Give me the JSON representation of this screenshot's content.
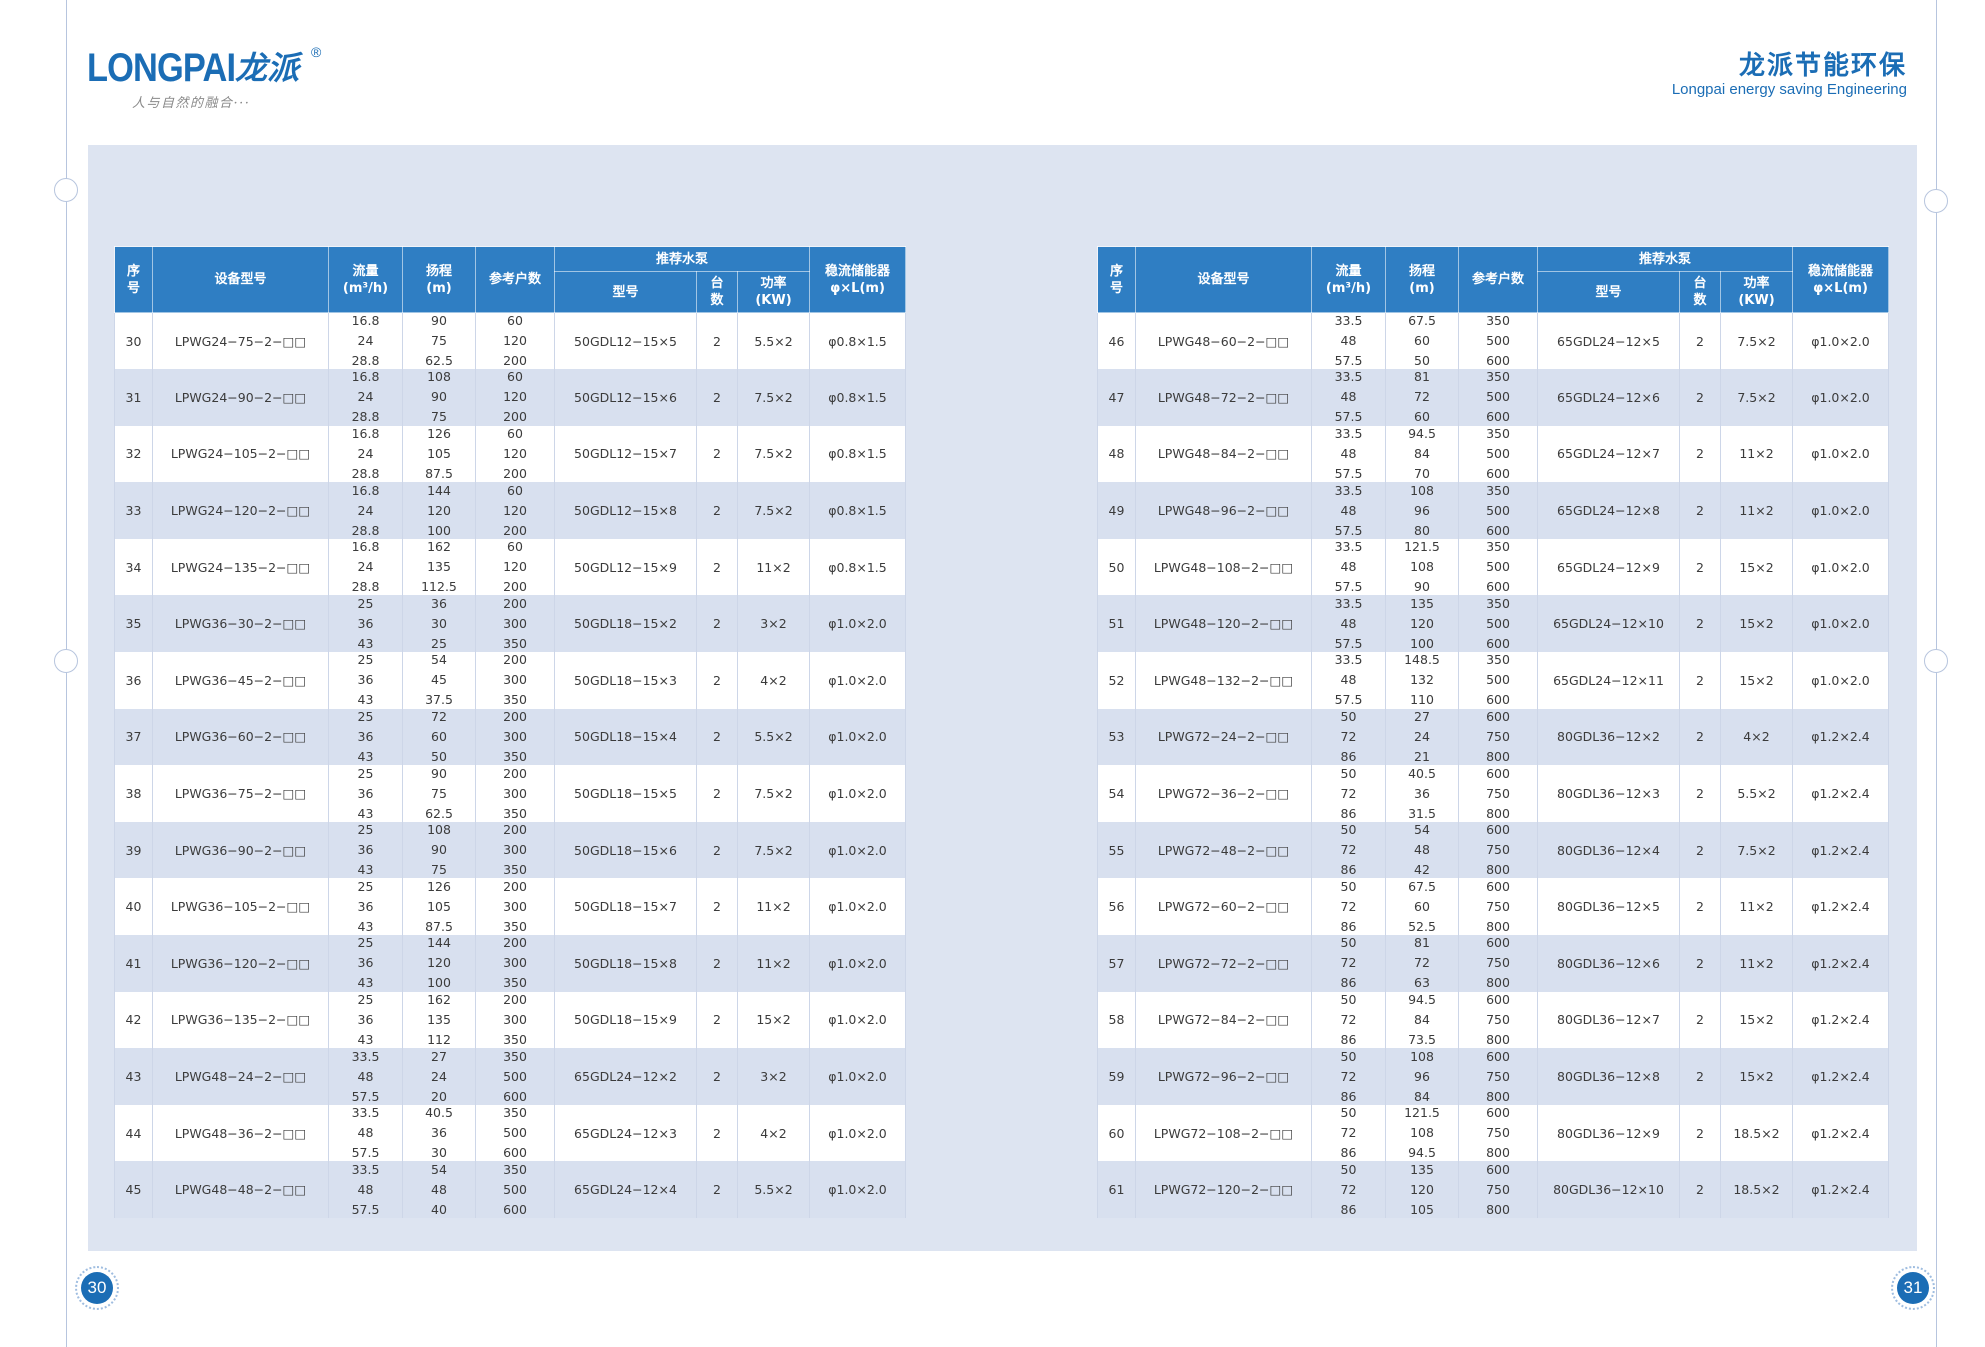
{
  "colors": {
    "brand_blue": "#1b6db5",
    "header_blue": "#2f7ec3",
    "panel": "#dde4f1",
    "stripe": "#d8e0ef"
  },
  "brand": {
    "logo_text": "LONGPAI",
    "logo_cn": "龙派",
    "registered_mark": "®",
    "tagline": "人与自然的融合···",
    "company_cn": "龙派节能环保",
    "company_en": "Longpai energy saving Engineering"
  },
  "header": {
    "index": [
      "序",
      "号"
    ],
    "model": "设备型号",
    "flow": [
      "流量",
      "(m³/h)"
    ],
    "head": [
      "扬程",
      "(m)"
    ],
    "households": "参考户数",
    "pump_group": "推荐水泵",
    "pump_model": "型号",
    "pump_count": [
      "台",
      "数"
    ],
    "power": [
      "功率",
      "(KW)"
    ],
    "tank": [
      "稳流储能器",
      "φ×L(m)"
    ]
  },
  "tables": [
    {
      "rows": [
        {
          "no": "30",
          "model": "LPWG24−75−2−□□",
          "flow": [
            "16.8",
            "24",
            "28.8"
          ],
          "head": [
            "90",
            "75",
            "62.5"
          ],
          "households": [
            "60",
            "120",
            "200"
          ],
          "pump_model": "50GDL12−15×5",
          "pump_count": "2",
          "power": "5.5×2",
          "tank": "φ0.8×1.5"
        },
        {
          "no": "31",
          "model": "LPWG24−90−2−□□",
          "flow": [
            "16.8",
            "24",
            "28.8"
          ],
          "head": [
            "108",
            "90",
            "75"
          ],
          "households": [
            "60",
            "120",
            "200"
          ],
          "pump_model": "50GDL12−15×6",
          "pump_count": "2",
          "power": "7.5×2",
          "tank": "φ0.8×1.5"
        },
        {
          "no": "32",
          "model": "LPWG24−105−2−□□",
          "flow": [
            "16.8",
            "24",
            "28.8"
          ],
          "head": [
            "126",
            "105",
            "87.5"
          ],
          "households": [
            "60",
            "120",
            "200"
          ],
          "pump_model": "50GDL12−15×7",
          "pump_count": "2",
          "power": "7.5×2",
          "tank": "φ0.8×1.5"
        },
        {
          "no": "33",
          "model": "LPWG24−120−2−□□",
          "flow": [
            "16.8",
            "24",
            "28.8"
          ],
          "head": [
            "144",
            "120",
            "100"
          ],
          "households": [
            "60",
            "120",
            "200"
          ],
          "pump_model": "50GDL12−15×8",
          "pump_count": "2",
          "power": "7.5×2",
          "tank": "φ0.8×1.5"
        },
        {
          "no": "34",
          "model": "LPWG24−135−2−□□",
          "flow": [
            "16.8",
            "24",
            "28.8"
          ],
          "head": [
            "162",
            "135",
            "112.5"
          ],
          "households": [
            "60",
            "120",
            "200"
          ],
          "pump_model": "50GDL12−15×9",
          "pump_count": "2",
          "power": "11×2",
          "tank": "φ0.8×1.5"
        },
        {
          "no": "35",
          "model": "LPWG36−30−2−□□",
          "flow": [
            "25",
            "36",
            "43"
          ],
          "head": [
            "36",
            "30",
            "25"
          ],
          "households": [
            "200",
            "300",
            "350"
          ],
          "pump_model": "50GDL18−15×2",
          "pump_count": "2",
          "power": "3×2",
          "tank": "φ1.0×2.0"
        },
        {
          "no": "36",
          "model": "LPWG36−45−2−□□",
          "flow": [
            "25",
            "36",
            "43"
          ],
          "head": [
            "54",
            "45",
            "37.5"
          ],
          "households": [
            "200",
            "300",
            "350"
          ],
          "pump_model": "50GDL18−15×3",
          "pump_count": "2",
          "power": "4×2",
          "tank": "φ1.0×2.0"
        },
        {
          "no": "37",
          "model": "LPWG36−60−2−□□",
          "flow": [
            "25",
            "36",
            "43"
          ],
          "head": [
            "72",
            "60",
            "50"
          ],
          "households": [
            "200",
            "300",
            "350"
          ],
          "pump_model": "50GDL18−15×4",
          "pump_count": "2",
          "power": "5.5×2",
          "tank": "φ1.0×2.0"
        },
        {
          "no": "38",
          "model": "LPWG36−75−2−□□",
          "flow": [
            "25",
            "36",
            "43"
          ],
          "head": [
            "90",
            "75",
            "62.5"
          ],
          "households": [
            "200",
            "300",
            "350"
          ],
          "pump_model": "50GDL18−15×5",
          "pump_count": "2",
          "power": "7.5×2",
          "tank": "φ1.0×2.0"
        },
        {
          "no": "39",
          "model": "LPWG36−90−2−□□",
          "flow": [
            "25",
            "36",
            "43"
          ],
          "head": [
            "108",
            "90",
            "75"
          ],
          "households": [
            "200",
            "300",
            "350"
          ],
          "pump_model": "50GDL18−15×6",
          "pump_count": "2",
          "power": "7.5×2",
          "tank": "φ1.0×2.0"
        },
        {
          "no": "40",
          "model": "LPWG36−105−2−□□",
          "flow": [
            "25",
            "36",
            "43"
          ],
          "head": [
            "126",
            "105",
            "87.5"
          ],
          "households": [
            "200",
            "300",
            "350"
          ],
          "pump_model": "50GDL18−15×7",
          "pump_count": "2",
          "power": "11×2",
          "tank": "φ1.0×2.0"
        },
        {
          "no": "41",
          "model": "LPWG36−120−2−□□",
          "flow": [
            "25",
            "36",
            "43"
          ],
          "head": [
            "144",
            "120",
            "100"
          ],
          "households": [
            "200",
            "300",
            "350"
          ],
          "pump_model": "50GDL18−15×8",
          "pump_count": "2",
          "power": "11×2",
          "tank": "φ1.0×2.0"
        },
        {
          "no": "42",
          "model": "LPWG36−135−2−□□",
          "flow": [
            "25",
            "36",
            "43"
          ],
          "head": [
            "162",
            "135",
            "112"
          ],
          "households": [
            "200",
            "300",
            "350"
          ],
          "pump_model": "50GDL18−15×9",
          "pump_count": "2",
          "power": "15×2",
          "tank": "φ1.0×2.0"
        },
        {
          "no": "43",
          "model": "LPWG48−24−2−□□",
          "flow": [
            "33.5",
            "48",
            "57.5"
          ],
          "head": [
            "27",
            "24",
            "20"
          ],
          "households": [
            "350",
            "500",
            "600"
          ],
          "pump_model": "65GDL24−12×2",
          "pump_count": "2",
          "power": "3×2",
          "tank": "φ1.0×2.0"
        },
        {
          "no": "44",
          "model": "LPWG48−36−2−□□",
          "flow": [
            "33.5",
            "48",
            "57.5"
          ],
          "head": [
            "40.5",
            "36",
            "30"
          ],
          "households": [
            "350",
            "500",
            "600"
          ],
          "pump_model": "65GDL24−12×3",
          "pump_count": "2",
          "power": "4×2",
          "tank": "φ1.0×2.0"
        },
        {
          "no": "45",
          "model": "LPWG48−48−2−□□",
          "flow": [
            "33.5",
            "48",
            "57.5"
          ],
          "head": [
            "54",
            "48",
            "40"
          ],
          "households": [
            "350",
            "500",
            "600"
          ],
          "pump_model": "65GDL24−12×4",
          "pump_count": "2",
          "power": "5.5×2",
          "tank": "φ1.0×2.0"
        }
      ]
    },
    {
      "rows": [
        {
          "no": "46",
          "model": "LPWG48−60−2−□□",
          "flow": [
            "33.5",
            "48",
            "57.5"
          ],
          "head": [
            "67.5",
            "60",
            "50"
          ],
          "households": [
            "350",
            "500",
            "600"
          ],
          "pump_model": "65GDL24−12×5",
          "pump_count": "2",
          "power": "7.5×2",
          "tank": "φ1.0×2.0"
        },
        {
          "no": "47",
          "model": "LPWG48−72−2−□□",
          "flow": [
            "33.5",
            "48",
            "57.5"
          ],
          "head": [
            "81",
            "72",
            "60"
          ],
          "households": [
            "350",
            "500",
            "600"
          ],
          "pump_model": "65GDL24−12×6",
          "pump_count": "2",
          "power": "7.5×2",
          "tank": "φ1.0×2.0"
        },
        {
          "no": "48",
          "model": "LPWG48−84−2−□□",
          "flow": [
            "33.5",
            "48",
            "57.5"
          ],
          "head": [
            "94.5",
            "84",
            "70"
          ],
          "households": [
            "350",
            "500",
            "600"
          ],
          "pump_model": "65GDL24−12×7",
          "pump_count": "2",
          "power": "11×2",
          "tank": "φ1.0×2.0"
        },
        {
          "no": "49",
          "model": "LPWG48−96−2−□□",
          "flow": [
            "33.5",
            "48",
            "57.5"
          ],
          "head": [
            "108",
            "96",
            "80"
          ],
          "households": [
            "350",
            "500",
            "600"
          ],
          "pump_model": "65GDL24−12×8",
          "pump_count": "2",
          "power": "11×2",
          "tank": "φ1.0×2.0"
        },
        {
          "no": "50",
          "model": "LPWG48−108−2−□□",
          "flow": [
            "33.5",
            "48",
            "57.5"
          ],
          "head": [
            "121.5",
            "108",
            "90"
          ],
          "households": [
            "350",
            "500",
            "600"
          ],
          "pump_model": "65GDL24−12×9",
          "pump_count": "2",
          "power": "15×2",
          "tank": "φ1.0×2.0"
        },
        {
          "no": "51",
          "model": "LPWG48−120−2−□□",
          "flow": [
            "33.5",
            "48",
            "57.5"
          ],
          "head": [
            "135",
            "120",
            "100"
          ],
          "households": [
            "350",
            "500",
            "600"
          ],
          "pump_model": "65GDL24−12×10",
          "pump_count": "2",
          "power": "15×2",
          "tank": "φ1.0×2.0"
        },
        {
          "no": "52",
          "model": "LPWG48−132−2−□□",
          "flow": [
            "33.5",
            "48",
            "57.5"
          ],
          "head": [
            "148.5",
            "132",
            "110"
          ],
          "households": [
            "350",
            "500",
            "600"
          ],
          "pump_model": "65GDL24−12×11",
          "pump_count": "2",
          "power": "15×2",
          "tank": "φ1.0×2.0"
        },
        {
          "no": "53",
          "model": "LPWG72−24−2−□□",
          "flow": [
            "50",
            "72",
            "86"
          ],
          "head": [
            "27",
            "24",
            "21"
          ],
          "households": [
            "600",
            "750",
            "800"
          ],
          "pump_model": "80GDL36−12×2",
          "pump_count": "2",
          "power": "4×2",
          "tank": "φ1.2×2.4"
        },
        {
          "no": "54",
          "model": "LPWG72−36−2−□□",
          "flow": [
            "50",
            "72",
            "86"
          ],
          "head": [
            "40.5",
            "36",
            "31.5"
          ],
          "households": [
            "600",
            "750",
            "800"
          ],
          "pump_model": "80GDL36−12×3",
          "pump_count": "2",
          "power": "5.5×2",
          "tank": "φ1.2×2.4"
        },
        {
          "no": "55",
          "model": "LPWG72−48−2−□□",
          "flow": [
            "50",
            "72",
            "86"
          ],
          "head": [
            "54",
            "48",
            "42"
          ],
          "households": [
            "600",
            "750",
            "800"
          ],
          "pump_model": "80GDL36−12×4",
          "pump_count": "2",
          "power": "7.5×2",
          "tank": "φ1.2×2.4"
        },
        {
          "no": "56",
          "model": "LPWG72−60−2−□□",
          "flow": [
            "50",
            "72",
            "86"
          ],
          "head": [
            "67.5",
            "60",
            "52.5"
          ],
          "households": [
            "600",
            "750",
            "800"
          ],
          "pump_model": "80GDL36−12×5",
          "pump_count": "2",
          "power": "11×2",
          "tank": "φ1.2×2.4"
        },
        {
          "no": "57",
          "model": "LPWG72−72−2−□□",
          "flow": [
            "50",
            "72",
            "86"
          ],
          "head": [
            "81",
            "72",
            "63"
          ],
          "households": [
            "600",
            "750",
            "800"
          ],
          "pump_model": "80GDL36−12×6",
          "pump_count": "2",
          "power": "11×2",
          "tank": "φ1.2×2.4"
        },
        {
          "no": "58",
          "model": "LPWG72−84−2−□□",
          "flow": [
            "50",
            "72",
            "86"
          ],
          "head": [
            "94.5",
            "84",
            "73.5"
          ],
          "households": [
            "600",
            "750",
            "800"
          ],
          "pump_model": "80GDL36−12×7",
          "pump_count": "2",
          "power": "15×2",
          "tank": "φ1.2×2.4"
        },
        {
          "no": "59",
          "model": "LPWG72−96−2−□□",
          "flow": [
            "50",
            "72",
            "86"
          ],
          "head": [
            "108",
            "96",
            "84"
          ],
          "households": [
            "600",
            "750",
            "800"
          ],
          "pump_model": "80GDL36−12×8",
          "pump_count": "2",
          "power": "15×2",
          "tank": "φ1.2×2.4"
        },
        {
          "no": "60",
          "model": "LPWG72−108−2−□□",
          "flow": [
            "50",
            "72",
            "86"
          ],
          "head": [
            "121.5",
            "108",
            "94.5"
          ],
          "households": [
            "600",
            "750",
            "800"
          ],
          "pump_model": "80GDL36−12×9",
          "pump_count": "2",
          "power": "18.5×2",
          "tank": "φ1.2×2.4"
        },
        {
          "no": "61",
          "model": "LPWG72−120−2−□□",
          "flow": [
            "50",
            "72",
            "86"
          ],
          "head": [
            "135",
            "120",
            "105"
          ],
          "households": [
            "600",
            "750",
            "800"
          ],
          "pump_model": "80GDL36−12×10",
          "pump_count": "2",
          "power": "18.5×2",
          "tank": "φ1.2×2.4"
        }
      ]
    }
  ],
  "pages": {
    "left": "30",
    "right": "31"
  }
}
